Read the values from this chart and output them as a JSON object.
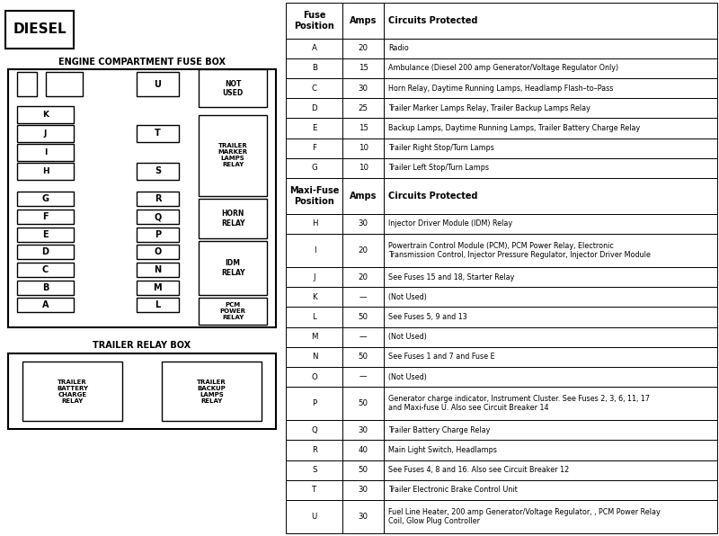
{
  "title": "DIESEL",
  "fuse_box_title": "ENGINE COMPARTMENT FUSE BOX",
  "trailer_relay_title": "TRAILER RELAY BOX",
  "table_rows": [
    [
      "A",
      "20",
      "Radio"
    ],
    [
      "B",
      "15",
      "Ambulance (Diesel 200 amp Generator/Voltage Regulator Only)"
    ],
    [
      "C",
      "30",
      "Horn Relay, Daytime Running Lamps, Headlamp Flash–to–Pass"
    ],
    [
      "D",
      "25",
      "Trailer Marker Lamps Relay, Trailer Backup Lamps Relay"
    ],
    [
      "E",
      "15",
      "Backup Lamps, Daytime Running Lamps, Trailer Battery Charge Relay"
    ],
    [
      "F",
      "10",
      "Trailer Right Stop/Turn Lamps"
    ],
    [
      "G",
      "10",
      "Trailer Left Stop/Turn Lamps"
    ]
  ],
  "maxi_rows": [
    [
      "H",
      "30",
      "Injector Driver Module (IDM) Relay"
    ],
    [
      "I",
      "20",
      "Powertrain Control Module (PCM), PCM Power Relay, Electronic\nTransmission Control, Injector Pressure Regulator, Injector Driver Module"
    ],
    [
      "J",
      "20",
      "See Fuses 15 and 18, Starter Relay"
    ],
    [
      "K",
      "—",
      "(Not Used)"
    ],
    [
      "L",
      "50",
      "See Fuses 5, 9 and 13"
    ],
    [
      "M",
      "—",
      "(Not Used)"
    ],
    [
      "N",
      "50",
      "See Fuses 1 and 7 and Fuse E"
    ],
    [
      "O",
      "—",
      "(Not Used)"
    ],
    [
      "P",
      "50",
      "Generator charge indicator, Instrument Cluster. See Fuses 2, 3, 6, 11, 17\nand Maxi-fuse U. Also see Circuit Breaker 14"
    ],
    [
      "Q",
      "30",
      "Trailer Battery Charge Relay"
    ],
    [
      "R",
      "40",
      "Main Light Switch, Headlamps"
    ],
    [
      "S",
      "50",
      "See Fuses 4, 8 and 16. Also see Circuit Breaker 12"
    ],
    [
      "T",
      "30",
      "Trailer Electronic Brake Control Unit"
    ],
    [
      "U",
      "30",
      "Fuel Line Heater, 200 amp Generator/Voltage Regulator, , PCM Power Relay\nCoil, Glow Plug Controller"
    ]
  ],
  "bg_color": "#ffffff"
}
